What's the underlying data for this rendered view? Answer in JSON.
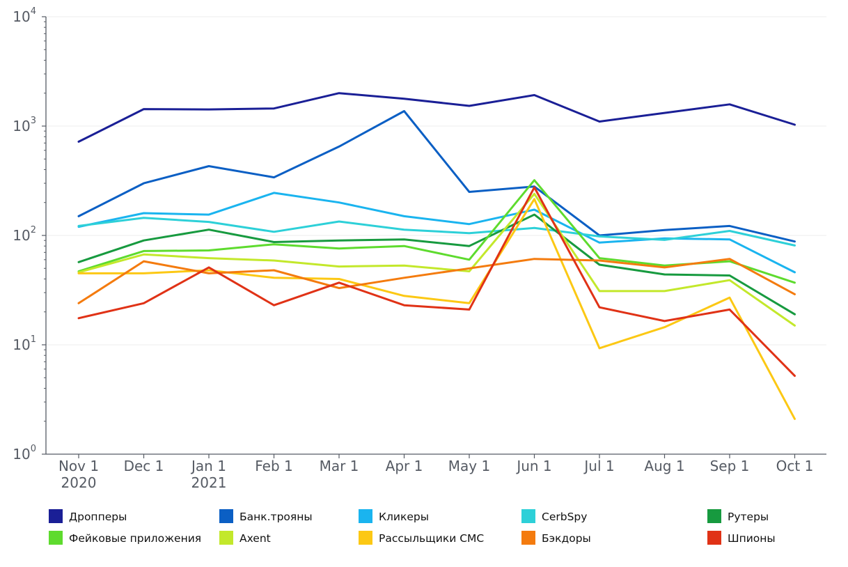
{
  "chart_data": {
    "type": "line",
    "title": "",
    "xlabel": "",
    "ylabel": "",
    "yscale": "log",
    "ylim": [
      1,
      10000
    ],
    "grid": true,
    "legend_position": "bottom",
    "x_ticks": [
      {
        "line1": "Nov 1",
        "line2": "2020"
      },
      {
        "line1": "Dec 1",
        "line2": ""
      },
      {
        "line1": "Jan 1",
        "line2": "2021"
      },
      {
        "line1": "Feb 1",
        "line2": ""
      },
      {
        "line1": "Mar 1",
        "line2": ""
      },
      {
        "line1": "Apr 1",
        "line2": ""
      },
      {
        "line1": "May 1",
        "line2": ""
      },
      {
        "line1": "Jun 1",
        "line2": ""
      },
      {
        "line1": "Jul 1",
        "line2": ""
      },
      {
        "line1": "Aug 1",
        "line2": ""
      },
      {
        "line1": "Sep 1",
        "line2": ""
      },
      {
        "line1": "Oct 1",
        "line2": ""
      }
    ],
    "y_ticks": [
      {
        "base": "10",
        "exp": "0",
        "value": 1
      },
      {
        "base": "10",
        "exp": "1",
        "value": 10
      },
      {
        "base": "10",
        "exp": "2",
        "value": 100
      },
      {
        "base": "10",
        "exp": "3",
        "value": 1000
      },
      {
        "base": "10",
        "exp": "4",
        "value": 10000
      }
    ],
    "series": [
      {
        "name": "Дропперы",
        "color": "#1a1f96",
        "values": [
          720,
          1430,
          1420,
          1450,
          2000,
          1780,
          1530,
          1920,
          1100,
          1320,
          1580,
          1030
        ]
      },
      {
        "name": "Банк.трояны",
        "color": "#0b5fc4",
        "values": [
          150,
          300,
          430,
          340,
          650,
          1370,
          250,
          280,
          100,
          112,
          122,
          88
        ]
      },
      {
        "name": "Кликеры",
        "color": "#1ab4ef",
        "values": [
          120,
          160,
          155,
          245,
          200,
          150,
          127,
          172,
          86,
          94,
          92,
          46
        ]
      },
      {
        "name": "CerbSpy",
        "color": "#2dd0d8",
        "values": [
          122,
          145,
          133,
          108,
          134,
          113,
          105,
          117,
          98,
          91,
          110,
          81
        ]
      },
      {
        "name": "Рутеры",
        "color": "#179a3f",
        "values": [
          57,
          90,
          113,
          87,
          90,
          92,
          80,
          155,
          54,
          44,
          43,
          19
        ]
      },
      {
        "name": "Фейковые приложения",
        "color": "#5edb2e",
        "values": [
          47,
          72,
          73,
          83,
          76,
          80,
          60,
          320,
          62,
          53,
          58,
          37
        ]
      },
      {
        "name": "Axent",
        "color": "#c3e82b",
        "values": [
          46,
          67,
          62,
          59,
          52,
          53,
          47,
          240,
          31,
          31,
          39,
          15
        ]
      },
      {
        "name": "Рассыльщики СМС",
        "color": "#fcc814",
        "values": [
          45,
          45,
          48,
          41,
          40,
          28,
          24,
          215,
          9.3,
          14.5,
          27,
          2.1
        ]
      },
      {
        "name": "Бэкдоры",
        "color": "#f47b0e",
        "values": [
          24,
          58,
          45,
          48,
          33,
          41,
          50,
          61,
          59,
          51,
          61,
          29
        ]
      },
      {
        "name": "Шпионы",
        "color": "#e03216",
        "values": [
          17.5,
          24,
          51,
          23,
          37,
          23,
          21,
          275,
          22,
          16.5,
          21,
          5.2
        ]
      }
    ]
  }
}
